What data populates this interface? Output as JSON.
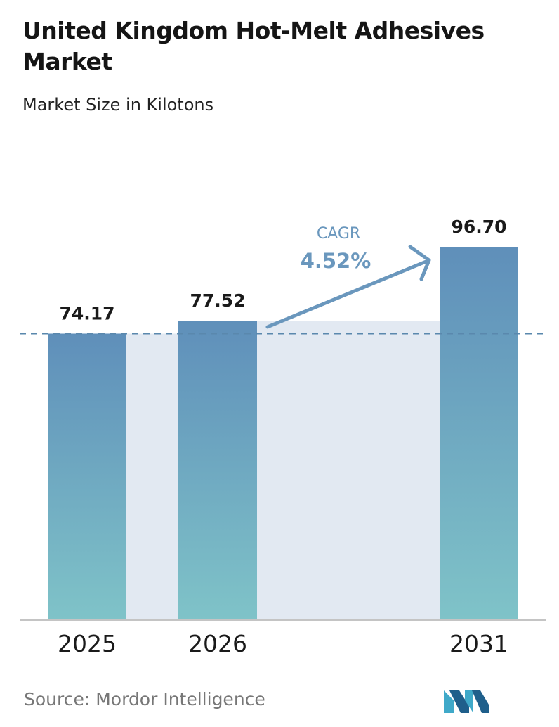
{
  "header": {
    "title": "United Kingdom Hot-Melt Adhesives Market",
    "subtitle": "Market Size in Kilotons"
  },
  "chart_data": {
    "type": "bar",
    "categories": [
      "2025",
      "2026",
      "2031"
    ],
    "values": [
      74.17,
      77.52,
      96.7
    ],
    "value_labels": [
      "74.17",
      "77.52",
      "96.70"
    ],
    "ylim": [
      0,
      100
    ],
    "grid": false,
    "reference_line": 74.17,
    "annotation": {
      "label": "CAGR",
      "value": "4.52%"
    },
    "colors": {
      "bar_top": "#5f8fba",
      "bar_bottom": "#7fc3c8",
      "band": "#e2e9f2",
      "reference_line": "#5a88ad",
      "arrow": "#6a97bd",
      "cagr_text": "#6a97bd"
    }
  },
  "footer": {
    "source": "Source:  Mordor Intelligence",
    "logo_icon": "mordor-intelligence-logo-icon"
  }
}
